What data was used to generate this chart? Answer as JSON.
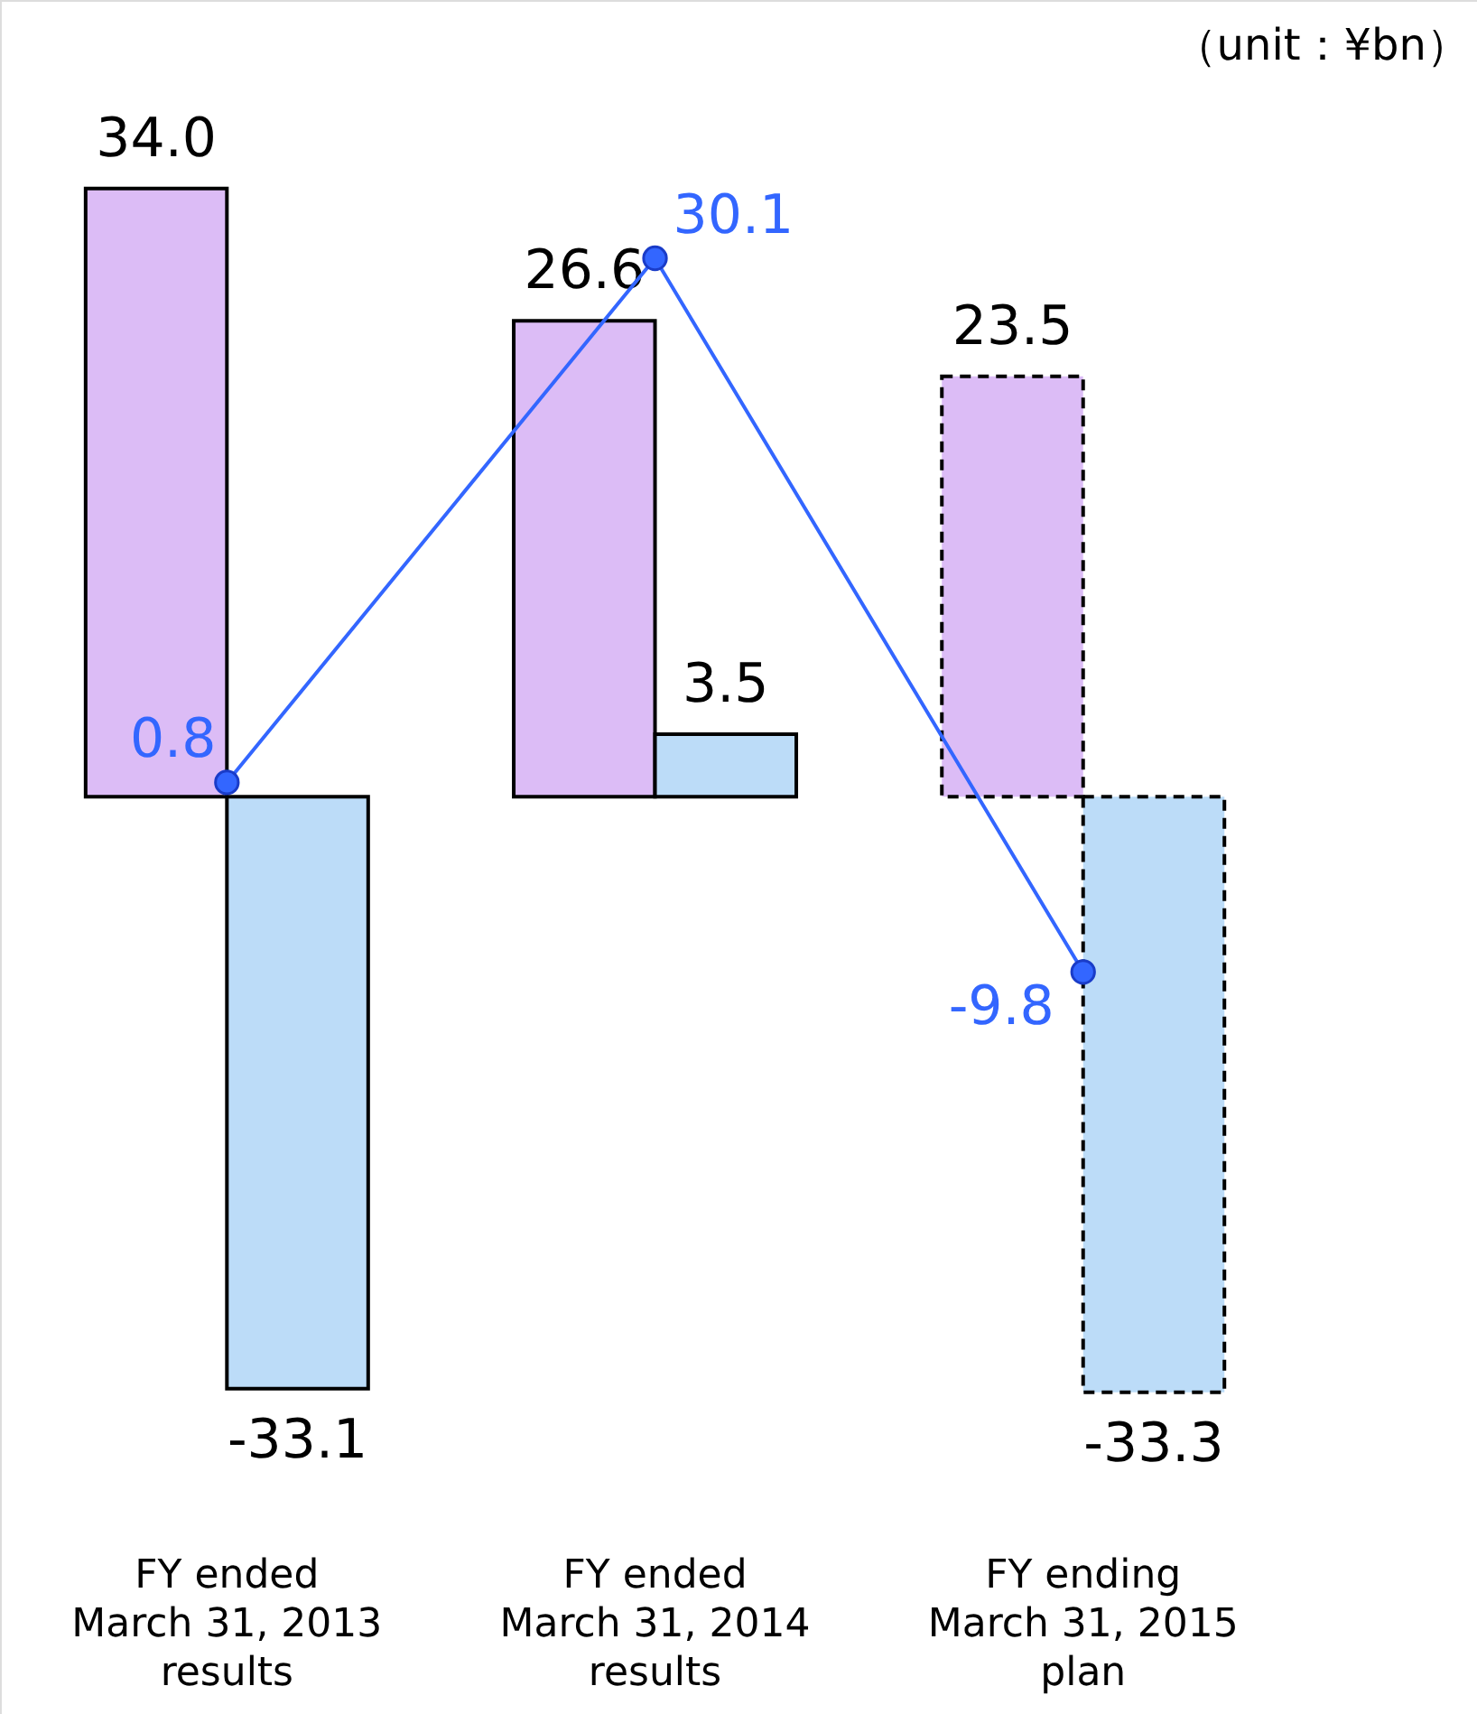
{
  "chart_data": {
    "type": "bar",
    "categories": [
      "FY ended\nMarch 31, 2013\nresults",
      "FY ended\nMarch 31, 2014\nresults",
      "FY ending\nMarch 31, 2015\nplan"
    ],
    "series": [
      {
        "type": "bar",
        "color": "#dcbcf6",
        "values": [
          34.0,
          26.6,
          23.5
        ],
        "value_labels": [
          "34.0",
          "26.6",
          "23.5"
        ],
        "line_style": [
          "solid",
          "solid",
          "dashed"
        ]
      },
      {
        "type": "bar",
        "color": "#bcdcf8",
        "values": [
          -33.1,
          3.5,
          -33.3
        ],
        "value_labels": [
          "-33.1",
          "3.5",
          "-33.3"
        ],
        "line_style": [
          "solid",
          "solid",
          "dashed"
        ]
      },
      {
        "type": "line",
        "color": "#3366ff",
        "values": [
          0.8,
          30.1,
          -9.8
        ],
        "value_labels": [
          "0.8",
          "30.1",
          "-9.8"
        ],
        "marker": "circle",
        "line_style": "solid"
      }
    ],
    "data_labels": true,
    "grid": false,
    "annotations": [
      "（unit：¥bn）"
    ]
  }
}
